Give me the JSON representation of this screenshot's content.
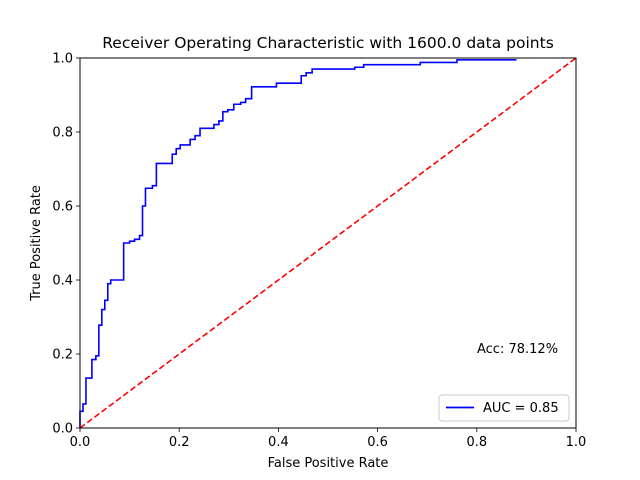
{
  "chart_data": {
    "type": "line",
    "title": "Receiver Operating Characteristic with 1600.0 data points",
    "xlabel": "False Positive Rate",
    "ylabel": "True Positive Rate",
    "xlim": [
      0,
      1
    ],
    "ylim": [
      0,
      1
    ],
    "xticks": [
      "0.0",
      "0.2",
      "0.4",
      "0.6",
      "0.8",
      "1.0"
    ],
    "yticks": [
      "0.0",
      "0.2",
      "0.4",
      "0.6",
      "0.8",
      "1.0"
    ],
    "grid": false,
    "legend_position": "lower-right",
    "annotation": "Acc: 78.12%",
    "series": [
      {
        "name": "AUC = 0.85",
        "color": "#0000ff",
        "style": "solid",
        "x": [
          0.0,
          0.0,
          0.006,
          0.006,
          0.012,
          0.012,
          0.024,
          0.024,
          0.032,
          0.032,
          0.038,
          0.038,
          0.044,
          0.044,
          0.05,
          0.05,
          0.056,
          0.056,
          0.062,
          0.062,
          0.068,
          0.068,
          0.088,
          0.088,
          0.1,
          0.1,
          0.11,
          0.11,
          0.12,
          0.12,
          0.126,
          0.126,
          0.132,
          0.132,
          0.146,
          0.146,
          0.154,
          0.154,
          0.186,
          0.186,
          0.194,
          0.194,
          0.202,
          0.202,
          0.222,
          0.222,
          0.232,
          0.232,
          0.242,
          0.242,
          0.27,
          0.27,
          0.28,
          0.28,
          0.288,
          0.288,
          0.298,
          0.298,
          0.31,
          0.31,
          0.324,
          0.324,
          0.334,
          0.334,
          0.346,
          0.346,
          0.396,
          0.396,
          0.446,
          0.446,
          0.456,
          0.456,
          0.468,
          0.468,
          0.554,
          0.554,
          0.572,
          0.572,
          0.686,
          0.686,
          0.76,
          0.76,
          0.88
        ],
        "y": [
          0.0,
          0.045,
          0.045,
          0.065,
          0.065,
          0.135,
          0.135,
          0.185,
          0.185,
          0.195,
          0.195,
          0.278,
          0.278,
          0.32,
          0.32,
          0.345,
          0.345,
          0.39,
          0.39,
          0.4,
          0.4,
          0.4,
          0.4,
          0.5,
          0.5,
          0.505,
          0.505,
          0.51,
          0.51,
          0.52,
          0.52,
          0.6,
          0.6,
          0.648,
          0.648,
          0.655,
          0.655,
          0.715,
          0.715,
          0.74,
          0.74,
          0.755,
          0.755,
          0.765,
          0.765,
          0.78,
          0.78,
          0.79,
          0.79,
          0.81,
          0.81,
          0.82,
          0.82,
          0.83,
          0.83,
          0.855,
          0.855,
          0.86,
          0.86,
          0.875,
          0.875,
          0.88,
          0.88,
          0.89,
          0.89,
          0.922,
          0.922,
          0.932,
          0.932,
          0.952,
          0.952,
          0.96,
          0.96,
          0.97,
          0.97,
          0.975,
          0.975,
          0.982,
          0.982,
          0.988,
          0.988,
          0.995,
          0.995
        ]
      },
      {
        "name": "",
        "color": "#ff0000",
        "style": "dashed",
        "x": [
          0,
          1
        ],
        "y": [
          0,
          1
        ]
      }
    ]
  }
}
